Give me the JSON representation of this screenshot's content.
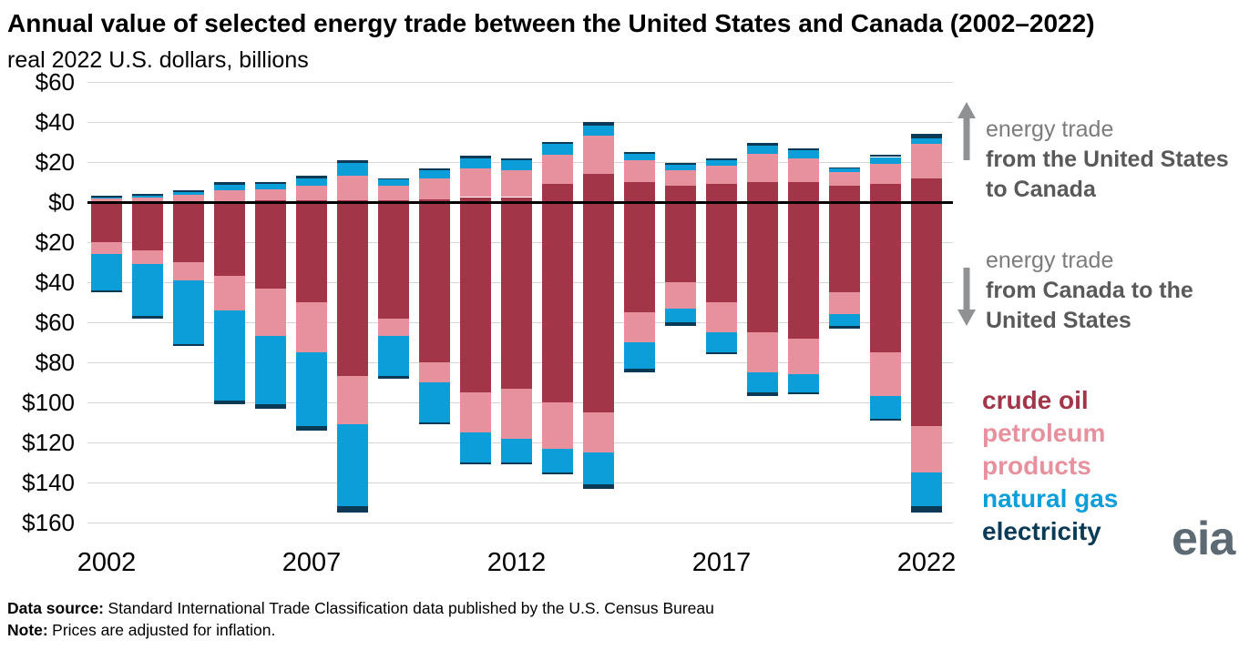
{
  "header": {
    "title": "Annual value of selected energy trade between the United States and Canada (2002–2022)",
    "subtitle": "real 2022 U.S. dollars, billions"
  },
  "annotations": {
    "up": {
      "line1": "energy trade",
      "line2": "from the United States to Canada"
    },
    "down": {
      "line1": "energy trade",
      "line2": "from Canada to the United States"
    },
    "arrow_color": "#8f9193"
  },
  "legend": {
    "items": [
      {
        "label": "crude oil",
        "color": "#a33549"
      },
      {
        "label": "petroleum products",
        "color": "#e8919e"
      },
      {
        "label": "natural gas",
        "color": "#0c9ed9"
      },
      {
        "label": "electricity",
        "color": "#0b3a56"
      }
    ]
  },
  "logo": {
    "text": "eia"
  },
  "footer": {
    "source_label": "Data source:",
    "source_text": "Standard International Trade Classification data published by the U.S. Census Bureau",
    "note_label": "Note:",
    "note_text": "Prices are adjusted for inflation."
  },
  "chart_data": {
    "type": "bar",
    "stacked": true,
    "diverging": true,
    "title": "Annual value of selected energy trade between the United States and Canada (2002–2022)",
    "subtitle": "real 2022 U.S. dollars, billions",
    "unit": "billion real 2022 U.S. dollars",
    "grid": true,
    "legend_position": "right",
    "categories": [
      2002,
      2003,
      2004,
      2005,
      2006,
      2007,
      2008,
      2009,
      2010,
      2011,
      2012,
      2013,
      2014,
      2015,
      2016,
      2017,
      2018,
      2019,
      2020,
      2021,
      2022
    ],
    "x_tick_labels": [
      "2002",
      "2007",
      "2012",
      "2017",
      "2022"
    ],
    "y_tick_values": [
      60,
      40,
      20,
      0,
      -20,
      -40,
      -60,
      -80,
      -100,
      -120,
      -140,
      -160
    ],
    "y_tick_labels": [
      "$60",
      "$40",
      "$20",
      "$0",
      "$20",
      "$40",
      "$60",
      "$80",
      "$100",
      "$120",
      "$140",
      "$160"
    ],
    "ylim": [
      -168,
      60
    ],
    "direction_up_label": "energy trade from the United States to Canada",
    "direction_down_label": "energy trade from Canada to the United States",
    "series_up": [
      {
        "name": "crude oil",
        "color": "#a33549",
        "values": [
          0.3,
          0.4,
          0.5,
          0.6,
          0.7,
          0.8,
          1.0,
          0.8,
          1.5,
          2.5,
          2.5,
          9.0,
          14.0,
          10.0,
          8.0,
          9.0,
          10.0,
          10.0,
          8.0,
          9.0,
          12.0
        ]
      },
      {
        "name": "petroleum products",
        "color": "#e8919e",
        "values": [
          1.5,
          2.0,
          3.0,
          5.5,
          5.8,
          7.5,
          12.0,
          7.5,
          10.5,
          14.5,
          13.5,
          14.5,
          19.0,
          11.0,
          8.0,
          9.0,
          14.0,
          12.0,
          7.0,
          10.0,
          17.0
        ]
      },
      {
        "name": "natural gas",
        "color": "#0c9ed9",
        "values": [
          0.7,
          1.0,
          1.5,
          2.4,
          2.5,
          3.7,
          6.5,
          3.0,
          4.0,
          5.0,
          5.0,
          5.5,
          5.0,
          3.0,
          2.5,
          3.0,
          4.0,
          4.0,
          2.0,
          3.5,
          3.0
        ]
      },
      {
        "name": "electricity",
        "color": "#0b3a56",
        "values": [
          0.5,
          0.8,
          1.0,
          1.5,
          1.0,
          1.0,
          1.5,
          0.7,
          1.0,
          1.0,
          1.0,
          1.0,
          2.0,
          1.0,
          1.0,
          1.0,
          1.5,
          1.0,
          0.5,
          1.0,
          2.0
        ]
      }
    ],
    "series_down": [
      {
        "name": "crude oil",
        "color": "#a33549",
        "values": [
          20,
          24,
          30,
          37,
          43,
          50,
          87,
          58,
          80,
          95,
          93,
          100,
          105,
          55,
          40,
          50,
          65,
          68,
          45,
          75,
          112
        ]
      },
      {
        "name": "petroleum products",
        "color": "#e8919e",
        "values": [
          6,
          7,
          9,
          17,
          24,
          25,
          24,
          9,
          10,
          20,
          25,
          23,
          20,
          15,
          13,
          15,
          20,
          18,
          11,
          22,
          23
        ]
      },
      {
        "name": "natural gas",
        "color": "#0c9ed9",
        "values": [
          18,
          26,
          32,
          45,
          34,
          37,
          41,
          20,
          20,
          15,
          12,
          12,
          16,
          13,
          7,
          10,
          10,
          9,
          6,
          11,
          17
        ]
      },
      {
        "name": "electricity",
        "color": "#0b3a56",
        "values": [
          1,
          1,
          1,
          2,
          2,
          2,
          3,
          1,
          1,
          1,
          1,
          1,
          2,
          2,
          2,
          1,
          2,
          1,
          1,
          1,
          3
        ]
      }
    ]
  }
}
